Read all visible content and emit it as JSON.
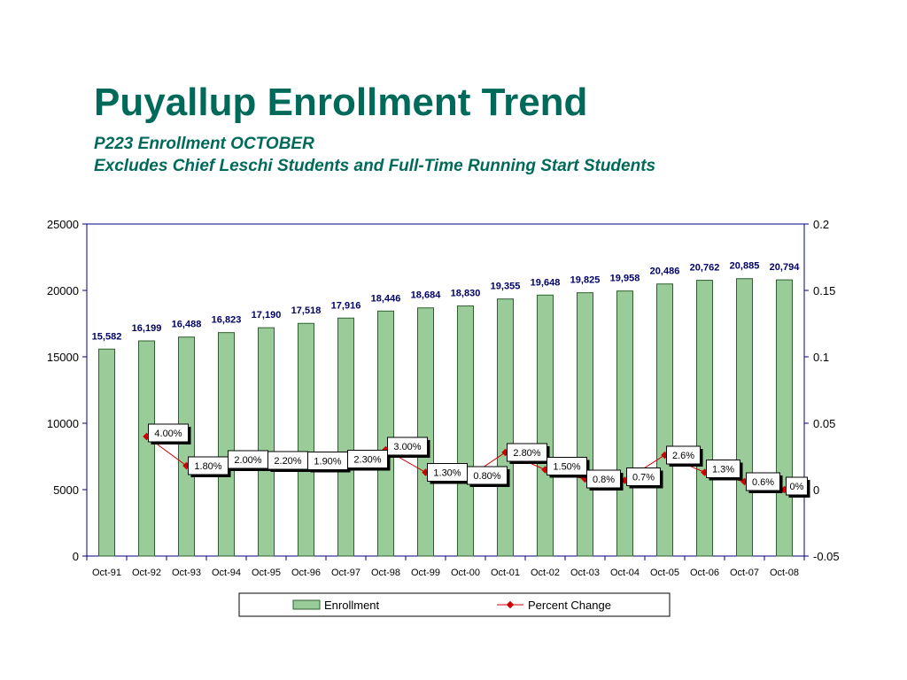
{
  "header": {
    "title": "Puyallup Enrollment Trend",
    "subtitle1": "P223 Enrollment OCTOBER",
    "subtitle2": "Excludes Chief Leschi Students and Full-Time Running Start Students"
  },
  "colors": {
    "title": "#006a5a",
    "bar_fill": "#99cc99",
    "bar_stroke": "#2f5f2f",
    "line": "#cc0000",
    "value_label": "#000066",
    "axis": "#000080"
  },
  "chart_data": {
    "type": "bar",
    "categories": [
      "Oct-91",
      "Oct-92",
      "Oct-93",
      "Oct-94",
      "Oct-95",
      "Oct-96",
      "Oct-97",
      "Oct-98",
      "Oct-99",
      "Oct-00",
      "Oct-01",
      "Oct-02",
      "Oct-03",
      "Oct-04",
      "Oct-05",
      "Oct-06",
      "Oct-07",
      "Oct-08"
    ],
    "series": [
      {
        "name": "Enrollment",
        "axis": "left",
        "values": [
          15582,
          16199,
          16488,
          16823,
          17190,
          17518,
          17916,
          18446,
          18684,
          18830,
          19355,
          19648,
          19825,
          19958,
          20486,
          20762,
          20885,
          20794
        ],
        "labels": [
          "15,582",
          "16,199",
          "16,488",
          "16,823",
          "17,190",
          "17,518",
          "17,916",
          "18,446",
          "18,684",
          "18,830",
          "19,355",
          "19,648",
          "19,825",
          "19,958",
          "20,486",
          "20,762",
          "20,885",
          "20,794"
        ]
      },
      {
        "name": "Percent Change",
        "type": "line",
        "axis": "right",
        "values": [
          null,
          0.04,
          0.018,
          0.02,
          0.022,
          0.019,
          0.023,
          0.03,
          0.013,
          0.008,
          0.028,
          0.015,
          0.008,
          0.007,
          0.026,
          0.013,
          0.006,
          0.0
        ],
        "labels": [
          null,
          "4.00%",
          "1.80%",
          "2.00%",
          "2.20%",
          "1.90%",
          "2.30%",
          "3.00%",
          "1.30%",
          "0.80%",
          "2.80%",
          "1.50%",
          "0.8%",
          "0.7%",
          "2.6%",
          "1.3%",
          "0.6%",
          "0%"
        ]
      }
    ],
    "y_left": {
      "min": 0,
      "max": 25000,
      "ticks": [
        "0",
        "5000",
        "10000",
        "15000",
        "20000",
        "25000"
      ]
    },
    "y_right": {
      "min": -0.05,
      "max": 0.2,
      "ticks": [
        "-0.05",
        "0",
        "0.05",
        "0.1",
        "0.15",
        "0.2"
      ]
    },
    "legend": {
      "items": [
        "Enrollment",
        "Percent Change"
      ],
      "position": "bottom"
    },
    "title": "Puyallup Enrollment Trend",
    "xlabel": "",
    "ylabel": ""
  }
}
